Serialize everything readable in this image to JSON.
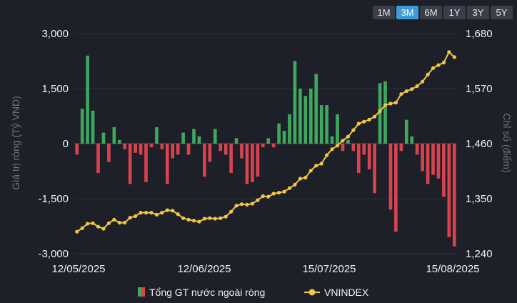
{
  "range_tabs": [
    {
      "label": "1M",
      "active": false
    },
    {
      "label": "3M",
      "active": true
    },
    {
      "label": "6M",
      "active": false
    },
    {
      "label": "1Y",
      "active": false
    },
    {
      "label": "3Y",
      "active": false
    },
    {
      "label": "5Y",
      "active": false
    }
  ],
  "colors": {
    "positive_bar": "#3ea85e",
    "negative_bar": "#d9434f",
    "line": "#f2c744",
    "background": "#1d2029"
  },
  "chart_data": {
    "type": "bar",
    "y_left_label": "Giá trị ròng (Tỷ VND)",
    "y_right_label": "Chỉ số (điểm)",
    "y_left_ticks": [
      "3,000",
      "1,500",
      "0",
      "-1,500",
      "-3,000"
    ],
    "y_left_range": [
      -3000,
      3000
    ],
    "y_right_ticks": [
      "1,680",
      "1,570",
      "1,460",
      "1,350",
      "1,240"
    ],
    "y_right_range": [
      1240,
      1680
    ],
    "x_tick_labels": [
      "12/05/2025",
      "12/06/2025",
      "15/07/2025",
      "15/08/2025"
    ],
    "legend": [
      "Tổng GT nước ngoài ròng",
      "VNINDEX"
    ],
    "series": [
      {
        "name": "Tổng GT nước ngoài ròng",
        "type": "bar",
        "values": [
          -300,
          950,
          2400,
          900,
          -800,
          300,
          -500,
          450,
          100,
          -150,
          -1100,
          -250,
          -300,
          -1050,
          -100,
          450,
          -150,
          -1100,
          -400,
          -300,
          300,
          -300,
          400,
          200,
          -900,
          -500,
          400,
          -200,
          -300,
          -800,
          150,
          -400,
          -1100,
          -1050,
          -900,
          -100,
          150,
          -100,
          550,
          350,
          800,
          2250,
          1500,
          1300,
          1500,
          1900,
          1050,
          1050,
          200,
          800,
          -200,
          100,
          -200,
          -800,
          -300,
          -700,
          -1350,
          1650,
          1700,
          -1800,
          -2400,
          -200,
          650,
          200,
          -300,
          -750,
          -1100,
          -850,
          -950,
          -1450,
          -2550,
          -2800
        ],
        "x": [
          "12/05",
          "13/05",
          "14/05",
          "15/05",
          "16/05",
          "19/05",
          "20/05",
          "21/05",
          "22/05",
          "23/05",
          "26/05",
          "27/05",
          "28/05",
          "29/05",
          "30/05",
          "02/06",
          "03/06",
          "04/06",
          "05/06",
          "06/06",
          "09/06",
          "10/06",
          "11/06",
          "12/06",
          "13/06",
          "16/06",
          "17/06",
          "18/06",
          "19/06",
          "20/06",
          "23/06",
          "24/06",
          "25/06",
          "26/06",
          "27/06",
          "30/06",
          "01/07",
          "02/07",
          "03/07",
          "04/07",
          "07/07",
          "08/07",
          "09/07",
          "10/07",
          "11/07",
          "14/07",
          "15/07",
          "16/07",
          "17/07",
          "18/07",
          "21/07",
          "22/07",
          "23/07",
          "24/07",
          "25/07",
          "28/07",
          "29/07",
          "30/07",
          "31/07",
          "01/08",
          "04/08",
          "05/08",
          "06/08",
          "07/08",
          "08/08",
          "11/08",
          "12/08",
          "13/08",
          "14/08",
          "15/08",
          "18/08",
          "19/08"
        ]
      },
      {
        "name": "VNINDEX",
        "type": "line",
        "values": [
          1284,
          1291,
          1300,
          1301,
          1294,
          1290,
          1301,
          1308,
          1302,
          1302,
          1312,
          1315,
          1322,
          1322,
          1322,
          1318,
          1322,
          1327,
          1326,
          1319,
          1311,
          1308,
          1306,
          1304,
          1310,
          1311,
          1310,
          1311,
          1314,
          1324,
          1336,
          1339,
          1338,
          1340,
          1347,
          1355,
          1354,
          1360,
          1362,
          1364,
          1371,
          1378,
          1390,
          1392,
          1406,
          1416,
          1420,
          1437,
          1449,
          1456,
          1466,
          1474,
          1487,
          1500,
          1504,
          1508,
          1514,
          1525,
          1537,
          1540,
          1542,
          1559,
          1565,
          1569,
          1575,
          1584,
          1598,
          1611,
          1617,
          1622,
          1643,
          1633
        ],
        "note_only_shape": "true"
      }
    ]
  }
}
